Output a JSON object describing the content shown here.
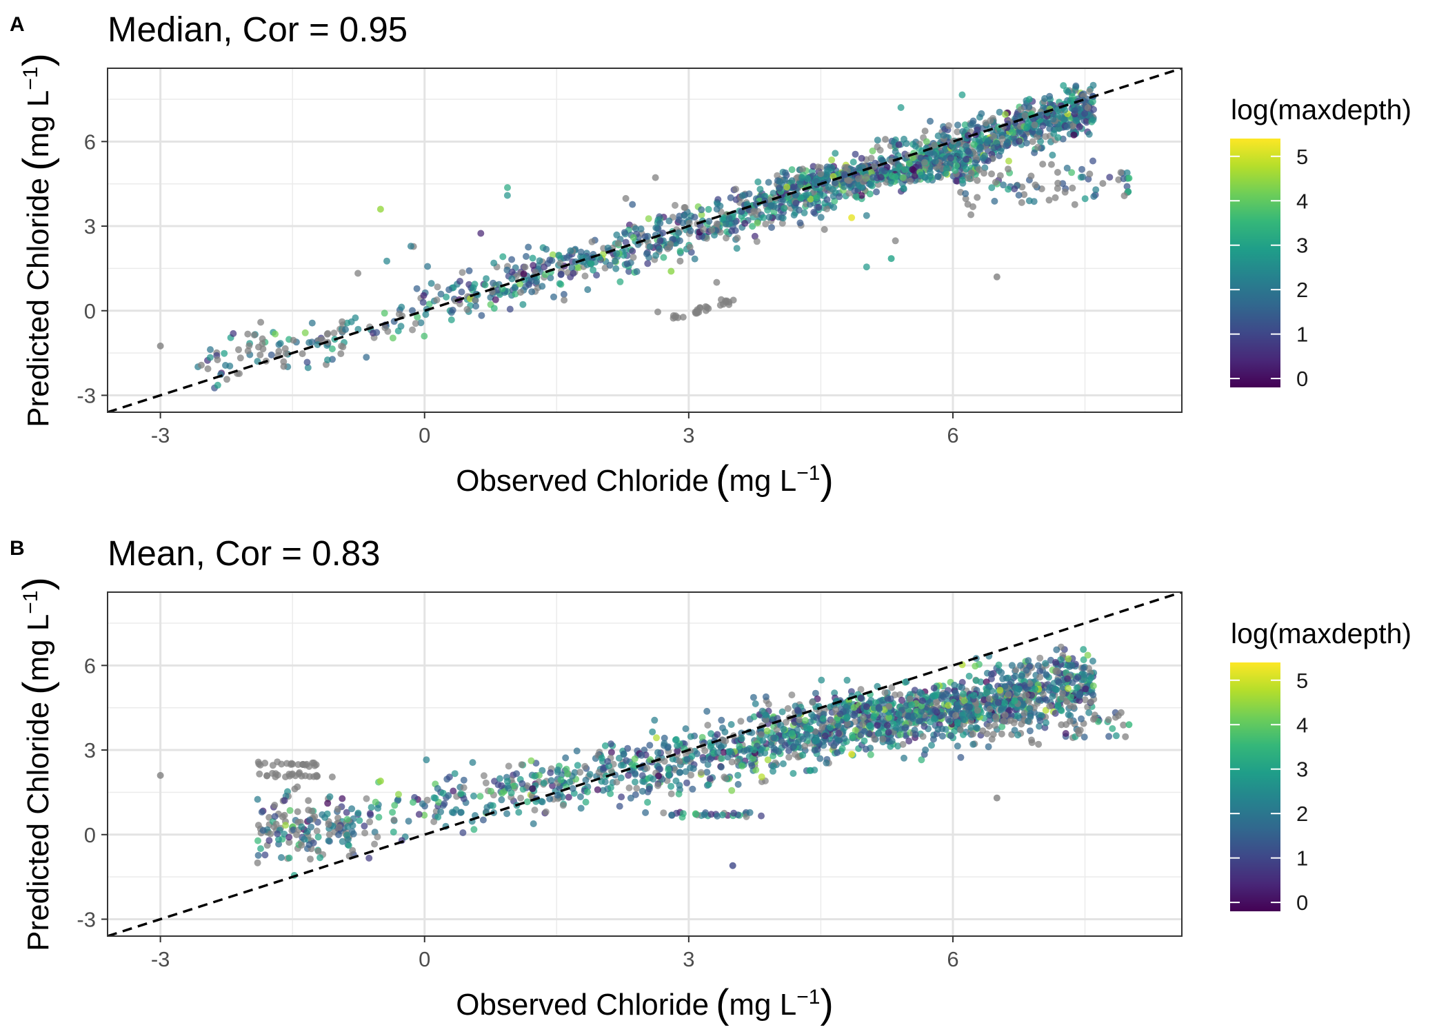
{
  "chart_data": [
    {
      "type": "scatter",
      "panel_letter": "A",
      "title": "Median, Cor = 0.95",
      "xlabel": "Observed Chloride (mg L⁻¹)",
      "ylabel": "Predicted Chloride (mg L⁻¹)",
      "xlabel_main": "Observed Chloride",
      "ylabel_main": "Predicted Chloride",
      "unit_base": "mg L",
      "unit_exp": "−1",
      "xlim": [
        -3.6,
        8.6
      ],
      "ylim": [
        -3.6,
        8.6
      ],
      "x_ticks": [
        -3,
        0,
        3,
        6
      ],
      "y_ticks": [
        -3,
        0,
        3,
        6
      ],
      "x_tick_labels": [
        "-3",
        "0",
        "3",
        "6"
      ],
      "y_tick_labels": [
        "-3",
        "0",
        "3",
        "6"
      ],
      "reference_line": {
        "slope": 1,
        "intercept": 0,
        "style": "dashed"
      },
      "grid": true,
      "legend": {
        "title": "log(maxdepth)",
        "placement": "right",
        "min": -0.2,
        "max": 5.4,
        "ticks": [
          0,
          1,
          2,
          3,
          4,
          5
        ],
        "tick_labels": [
          "0",
          "1",
          "2",
          "3",
          "4",
          "5"
        ],
        "colors": [
          "#440154",
          "#482878",
          "#3e4989",
          "#31688e",
          "#26828e",
          "#1f9e89",
          "#35b779",
          "#6ece58",
          "#b5de2b",
          "#fde725"
        ]
      },
      "na_color": "#808080",
      "clusters": [
        {
          "label": "main 1:1 cloud",
          "n": 1400,
          "x": [
            -1.9,
            7.6
          ],
          "slope": 0.95,
          "intercept": 0.05,
          "spread": 0.42,
          "x_dist": "triangular",
          "color_mode": "viridis"
        },
        {
          "label": "upper plateau",
          "n": 260,
          "x": [
            4.0,
            6.4
          ],
          "slope": 0.25,
          "intercept": 3.55,
          "spread": 0.2,
          "color_mode": "viridis"
        },
        {
          "label": "high-observed low-predicted",
          "n": 80,
          "x": [
            6.0,
            8.0
          ],
          "slope": 0.05,
          "intercept": 4.1,
          "spread": 0.4,
          "color_mode": "mixed"
        },
        {
          "label": "low-predicted gray streak",
          "n": 28,
          "x": [
            2.8,
            3.6
          ],
          "slope": 1.0,
          "intercept": -3.1,
          "spread": 0.06,
          "color_mode": "gray"
        },
        {
          "label": "low-end scatter",
          "n": 70,
          "x": [
            -2.6,
            -0.8
          ],
          "slope": 0.5,
          "intercept": -0.4,
          "spread": 0.45,
          "color_mode": "mixed"
        },
        {
          "label": "sparse outliers",
          "n": 55,
          "x": [
            -1.2,
            6.5
          ],
          "slope": 0.55,
          "intercept": 1.2,
          "spread": 1.3,
          "color_mode": "mixed"
        }
      ],
      "highlights": [
        {
          "x": -3.0,
          "y": -1.25,
          "c": null
        },
        {
          "x": -0.5,
          "y": 3.6,
          "c": 4.5
        },
        {
          "x": 4.85,
          "y": 3.3,
          "c": 5.2
        },
        {
          "x": 6.5,
          "y": 1.2,
          "c": null
        },
        {
          "x": 5.3,
          "y": 1.85,
          "c": 3.0
        },
        {
          "x": 8.0,
          "y": 4.7,
          "c": 3.5
        },
        {
          "x": 2.8,
          "y": 1.4,
          "c": 4.4
        }
      ]
    },
    {
      "type": "scatter",
      "panel_letter": "B",
      "title": "Mean, Cor = 0.83",
      "xlabel": "Observed Chloride (mg L⁻¹)",
      "ylabel": "Predicted Chloride (mg L⁻¹)",
      "xlabel_main": "Observed Chloride",
      "ylabel_main": "Predicted Chloride",
      "unit_base": "mg L",
      "unit_exp": "−1",
      "xlim": [
        -3.6,
        8.6
      ],
      "ylim": [
        -3.6,
        8.6
      ],
      "x_ticks": [
        -3,
        0,
        3,
        6
      ],
      "y_ticks": [
        -3,
        0,
        3,
        6
      ],
      "x_tick_labels": [
        "-3",
        "0",
        "3",
        "6"
      ],
      "y_tick_labels": [
        "-3",
        "0",
        "3",
        "6"
      ],
      "reference_line": {
        "slope": 1,
        "intercept": 0,
        "style": "dashed"
      },
      "grid": true,
      "legend": {
        "title": "log(maxdepth)",
        "placement": "right",
        "min": -0.2,
        "max": 5.4,
        "ticks": [
          0,
          1,
          2,
          3,
          4,
          5
        ],
        "tick_labels": [
          "0",
          "1",
          "2",
          "3",
          "4",
          "5"
        ],
        "colors": [
          "#440154",
          "#482878",
          "#3e4989",
          "#31688e",
          "#26828e",
          "#1f9e89",
          "#35b779",
          "#6ece58",
          "#b5de2b",
          "#fde725"
        ]
      },
      "na_color": "#808080",
      "clusters": [
        {
          "label": "main flattened cloud",
          "n": 1500,
          "x": [
            -1.9,
            7.6
          ],
          "slope": 0.6,
          "intercept": 0.9,
          "spread": 0.55,
          "x_dist": "triangular",
          "color_mode": "viridis"
        },
        {
          "label": "upper plateau",
          "n": 280,
          "x": [
            3.8,
            6.8
          ],
          "slope": 0.2,
          "intercept": 3.45,
          "spread": 0.35,
          "color_mode": "viridis"
        },
        {
          "label": "left horizontal streaks",
          "n": 120,
          "x": [
            -1.9,
            -0.8
          ],
          "slope": 0.0,
          "intercept": 0.3,
          "spread": 0.55,
          "color_mode": "mixed"
        },
        {
          "label": "gray streak y=2.5",
          "n": 22,
          "x": [
            -1.9,
            -1.2
          ],
          "slope": 0.0,
          "intercept": 2.5,
          "spread": 0.04,
          "color_mode": "gray"
        },
        {
          "label": "gray streak y=2.1",
          "n": 22,
          "x": [
            -1.9,
            -1.2
          ],
          "slope": 0.0,
          "intercept": 2.1,
          "spread": 0.04,
          "color_mode": "gray"
        },
        {
          "label": "high-observed tail",
          "n": 80,
          "x": [
            6.0,
            8.0
          ],
          "slope": 0.05,
          "intercept": 3.5,
          "spread": 0.4,
          "color_mode": "mixed"
        },
        {
          "label": "low-predicted streak",
          "n": 30,
          "x": [
            2.5,
            3.9
          ],
          "slope": 0.0,
          "intercept": 0.7,
          "spread": 0.05,
          "color_mode": "viridis"
        }
      ],
      "highlights": [
        {
          "x": -3.0,
          "y": 2.1,
          "c": null
        },
        {
          "x": -0.5,
          "y": 1.9,
          "c": 4.5
        },
        {
          "x": 4.85,
          "y": 2.85,
          "c": 5.2
        },
        {
          "x": 6.5,
          "y": 1.3,
          "c": null
        },
        {
          "x": 8.0,
          "y": 3.9,
          "c": 3.5
        },
        {
          "x": 3.5,
          "y": -1.1,
          "c": 1.0
        }
      ]
    }
  ]
}
